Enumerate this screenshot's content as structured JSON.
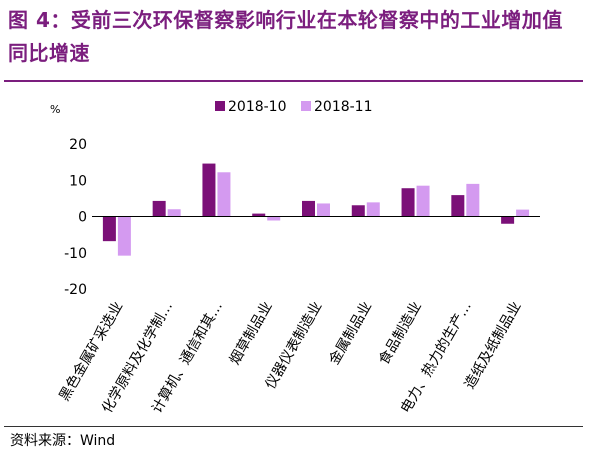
{
  "title": "图 4：受前三次环保督察影响行业在本轮督察中的工业增加值同比增速",
  "source": "资料来源：Wind",
  "colors": {
    "title": "#7B1E7E",
    "series1": "#7B1078",
    "series2": "#D49AF0"
  },
  "chart_data": {
    "type": "bar",
    "title": "",
    "xlabel": "",
    "ylabel": "%",
    "ylim": [
      -20,
      20
    ],
    "yticks": [
      20,
      10,
      0,
      -10,
      -20
    ],
    "legend": "top-center",
    "grid": false,
    "categories": [
      "黑色金属矿采选业",
      "化学原料及化学制…",
      "计算机、通信和其…",
      "烟草制品业",
      "仪器仪表制造业",
      "金属制品业",
      "食品制造业",
      "电力、热力的生产…",
      "造纸及纸制品业"
    ],
    "series": [
      {
        "name": "2018-10",
        "values": [
          -6.8,
          4.3,
          14.6,
          0.8,
          4.3,
          3.1,
          7.8,
          5.9,
          -2.0
        ]
      },
      {
        "name": "2018-11",
        "values": [
          -10.8,
          2.0,
          12.2,
          -1.1,
          3.6,
          3.9,
          8.5,
          9.0,
          1.9
        ]
      }
    ]
  }
}
